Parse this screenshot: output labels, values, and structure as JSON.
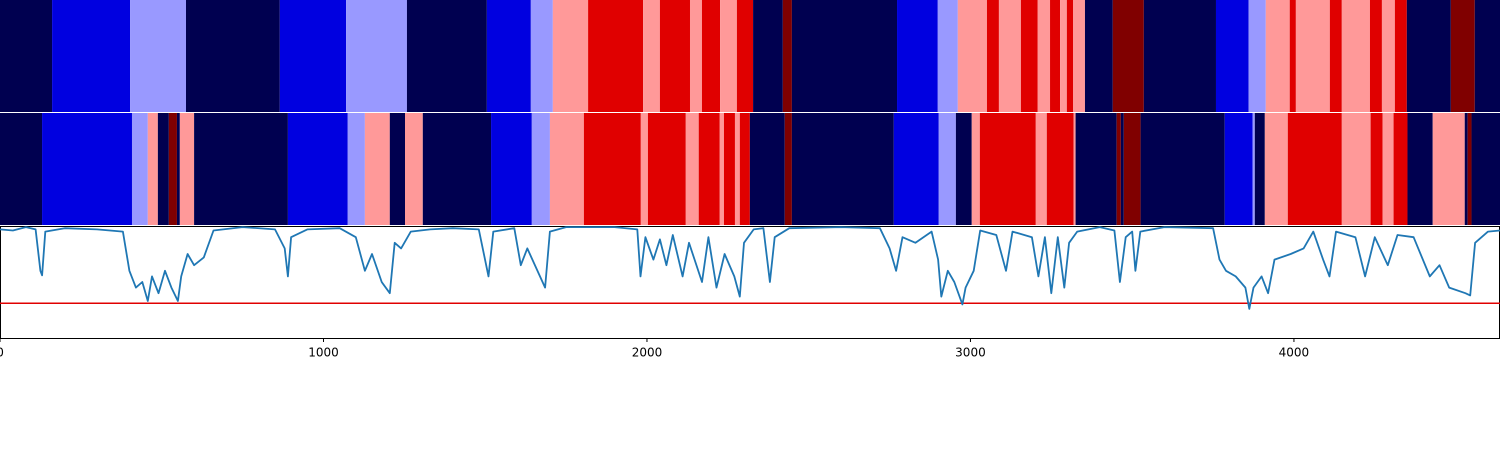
{
  "chart_data": [
    {
      "type": "segments",
      "xlim": [
        0,
        4637
      ],
      "edges": [
        0,
        161,
        402,
        575,
        865,
        1070,
        1258,
        1505,
        1641,
        1709,
        1818,
        1988,
        2040,
        2133,
        2170,
        2226,
        2278,
        2328,
        2420,
        2448,
        2773,
        2899,
        2961,
        3051,
        3088,
        3156,
        3208,
        3246,
        3277,
        3298,
        3317,
        3354,
        3440,
        3536,
        3759,
        3860,
        3913,
        3987,
        4006,
        4111,
        4148,
        4235,
        4272,
        4312,
        4349,
        4485,
        4559,
        4637
      ],
      "colors": [
        "#000050",
        "#0000e0",
        "#9999ff",
        "#000050",
        "#0000e0",
        "#9999ff",
        "#000050",
        "#0000e0",
        "#9999ff",
        "#ff9999",
        "#e00000",
        "#ff9999",
        "#e00000",
        "#ff9999",
        "#e00000",
        "#ff9999",
        "#e00000",
        "#000050",
        "#800000",
        "#000050",
        "#0000e0",
        "#9999ff",
        "#ff9999",
        "#e00000",
        "#ff9999",
        "#e00000",
        "#ff9999",
        "#e00000",
        "#ff9999",
        "#e00000",
        "#ff9999",
        "#000050",
        "#800000",
        "#000050",
        "#0000e0",
        "#9999ff",
        "#ff9999",
        "#e00000",
        "#ff9999",
        "#e00000",
        "#ff9999",
        "#e00000",
        "#ff9999",
        "#e00000",
        "#000050",
        "#800000",
        "#000050"
      ]
    },
    {
      "type": "segments",
      "xlim": [
        0,
        4637
      ],
      "edges": [
        0,
        130,
        408,
        457,
        488,
        522,
        547,
        556,
        600,
        890,
        1075,
        1128,
        1205,
        1252,
        1307,
        1518,
        1644,
        1700,
        1805,
        1981,
        2003,
        2120,
        2160,
        2225,
        2238,
        2272,
        2287,
        2318,
        2426,
        2448,
        2763,
        2902,
        2955,
        3004,
        3029,
        3202,
        3236,
        3319,
        3325,
        3452,
        3465,
        3474,
        3526,
        3786,
        3872,
        3879,
        3910,
        3981,
        4148,
        4237,
        4274,
        4308,
        4351,
        4429,
        4528,
        4537,
        4549,
        4637
      ],
      "colors": [
        "#000050",
        "#0000e0",
        "#9999ff",
        "#ff9999",
        "#000050",
        "#800000",
        "#000050",
        "#ff9999",
        "#000050",
        "#0000e0",
        "#9999ff",
        "#ff9999",
        "#000050",
        "#ff9999",
        "#000050",
        "#0000e0",
        "#9999ff",
        "#ff9999",
        "#e00000",
        "#ff9999",
        "#e00000",
        "#ff9999",
        "#e00000",
        "#ff9999",
        "#e00000",
        "#ff9999",
        "#e00000",
        "#000050",
        "#800000",
        "#000050",
        "#0000e0",
        "#9999ff",
        "#000050",
        "#ff9999",
        "#e00000",
        "#ff9999",
        "#e00000",
        "#ff9999",
        "#000050",
        "#800000",
        "#000050",
        "#800000",
        "#000050",
        "#0000e0",
        "#9999ff",
        "#000050",
        "#ff9999",
        "#e00000",
        "#ff9999",
        "#e00000",
        "#ff9999",
        "#e00000",
        "#000050",
        "#ff9999",
        "#000050",
        "#800000",
        "#000050"
      ]
    },
    {
      "type": "line",
      "xlim": [
        0,
        4637
      ],
      "ylim": [
        0,
        1
      ],
      "xticks": [
        0,
        1000,
        2000,
        3000,
        4000
      ],
      "color": "#1f77b4",
      "hline": 0.31,
      "hline_color": "#e00000",
      "x": [
        0,
        40,
        80,
        110,
        125,
        130,
        140,
        200,
        300,
        380,
        400,
        420,
        440,
        457,
        470,
        490,
        510,
        530,
        550,
        560,
        580,
        600,
        630,
        660,
        750,
        850,
        880,
        890,
        900,
        950,
        1050,
        1100,
        1128,
        1150,
        1180,
        1205,
        1220,
        1240,
        1270,
        1330,
        1400,
        1480,
        1510,
        1525,
        1590,
        1610,
        1630,
        1685,
        1700,
        1750,
        1900,
        1970,
        1980,
        1995,
        2020,
        2040,
        2060,
        2080,
        2110,
        2130,
        2170,
        2190,
        2215,
        2240,
        2270,
        2287,
        2300,
        2330,
        2360,
        2380,
        2395,
        2440,
        2600,
        2720,
        2750,
        2770,
        2790,
        2830,
        2880,
        2900,
        2910,
        2930,
        2950,
        2975,
        2985,
        3010,
        3030,
        3080,
        3110,
        3130,
        3190,
        3210,
        3230,
        3250,
        3270,
        3290,
        3305,
        3330,
        3400,
        3445,
        3462,
        3480,
        3500,
        3510,
        3525,
        3600,
        3750,
        3770,
        3790,
        3820,
        3850,
        3862,
        3875,
        3900,
        3920,
        3940,
        3990,
        4030,
        4060,
        4090,
        4110,
        4130,
        4190,
        4220,
        4250,
        4290,
        4320,
        4370,
        4420,
        4450,
        4480,
        4530,
        4545,
        4560,
        4600,
        4637
      ],
      "values": [
        0.97,
        0.96,
        0.99,
        0.97,
        0.6,
        0.56,
        0.95,
        0.98,
        0.97,
        0.95,
        0.6,
        0.45,
        0.5,
        0.33,
        0.55,
        0.4,
        0.6,
        0.45,
        0.33,
        0.55,
        0.75,
        0.65,
        0.72,
        0.96,
        0.99,
        0.97,
        0.8,
        0.55,
        0.9,
        0.97,
        0.98,
        0.9,
        0.6,
        0.75,
        0.5,
        0.4,
        0.85,
        0.8,
        0.95,
        0.97,
        0.98,
        0.97,
        0.55,
        0.95,
        0.98,
        0.65,
        0.8,
        0.45,
        0.95,
        0.99,
        0.99,
        0.97,
        0.55,
        0.9,
        0.7,
        0.88,
        0.65,
        0.92,
        0.55,
        0.85,
        0.5,
        0.9,
        0.45,
        0.75,
        0.55,
        0.37,
        0.85,
        0.97,
        0.98,
        0.5,
        0.9,
        0.98,
        0.99,
        0.98,
        0.8,
        0.6,
        0.9,
        0.85,
        0.95,
        0.7,
        0.37,
        0.6,
        0.5,
        0.3,
        0.45,
        0.6,
        0.96,
        0.92,
        0.6,
        0.95,
        0.9,
        0.55,
        0.9,
        0.4,
        0.9,
        0.45,
        0.85,
        0.95,
        0.99,
        0.96,
        0.5,
        0.9,
        0.95,
        0.6,
        0.95,
        0.99,
        0.98,
        0.7,
        0.6,
        0.55,
        0.45,
        0.26,
        0.45,
        0.55,
        0.4,
        0.7,
        0.75,
        0.8,
        0.95,
        0.7,
        0.55,
        0.95,
        0.9,
        0.55,
        0.9,
        0.65,
        0.92,
        0.9,
        0.55,
        0.65,
        0.45,
        0.4,
        0.38,
        0.85,
        0.95,
        0.96
      ]
    }
  ]
}
